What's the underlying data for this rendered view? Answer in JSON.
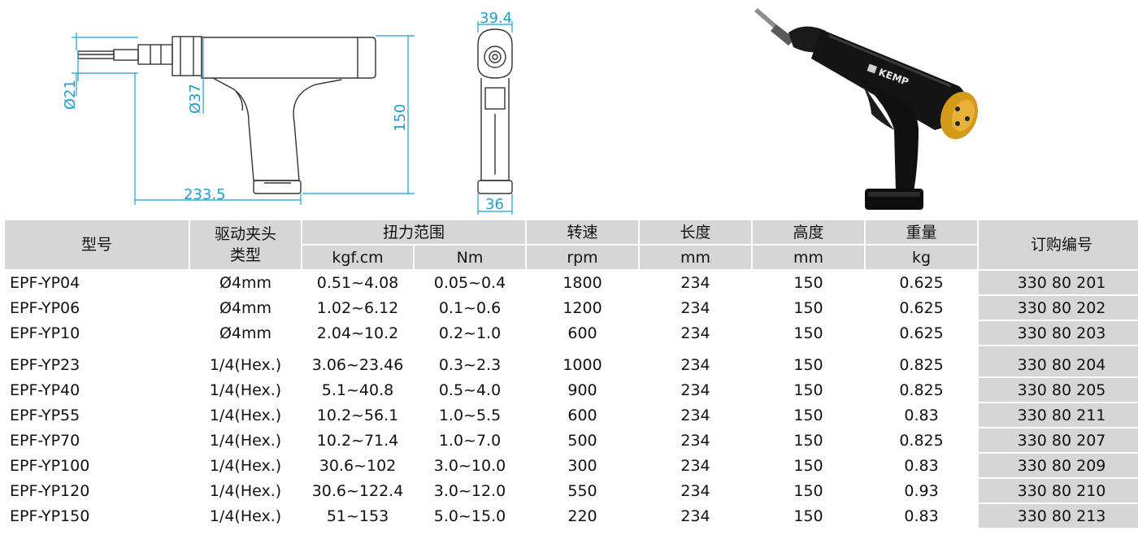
{
  "colors": {
    "dimension": "#1e9fd2",
    "header_bg": "#d6d6d6",
    "order_bg": "#d6d6d6",
    "tool_body": "#141414",
    "tool_cap": "#d39a1a"
  },
  "drawing_labels": {
    "side_view": {
      "diameter_small": "Ø21",
      "diameter_large": "Ø37",
      "height": "150",
      "length": "233.5"
    },
    "front_view": {
      "top_width": "39.4",
      "bottom_width": "36"
    },
    "photo": {
      "brand": "KEMP"
    }
  },
  "table": {
    "headers": {
      "model": "型号",
      "chuck": "驱动夹头\n类型",
      "torque": "扭力范围",
      "speed": "转速",
      "length": "长度",
      "height": "高度",
      "weight": "重量",
      "order": "订购编号"
    },
    "units": {
      "torque_kgf": "kgf.cm",
      "torque_nm": "Nm",
      "speed": "rpm",
      "length": "mm",
      "height": "mm",
      "weight": "kg"
    },
    "rows": [
      {
        "model": "EPF-YP04",
        "chuck": "Ø4mm",
        "kgf": "0.51~4.08",
        "nm": "0.05~0.4",
        "rpm": "1800",
        "length": "234",
        "height": "150",
        "weight": "0.625",
        "order": "330 80 201"
      },
      {
        "model": "EPF-YP06",
        "chuck": "Ø4mm",
        "kgf": "1.02~6.12",
        "nm": "0.1~0.6",
        "rpm": "1200",
        "length": "234",
        "height": "150",
        "weight": "0.625",
        "order": "330 80 202"
      },
      {
        "model": "EPF-YP10",
        "chuck": "Ø4mm",
        "kgf": "2.04~10.2",
        "nm": "0.2~1.0",
        "rpm": "600",
        "length": "234",
        "height": "150",
        "weight": "0.625",
        "order": "330 80 203"
      },
      {
        "model": "EPF-YP23",
        "chuck": "1/4(Hex.)",
        "kgf": "3.06~23.46",
        "nm": "0.3~2.3",
        "rpm": "1000",
        "length": "234",
        "height": "150",
        "weight": "0.825",
        "order": "330 80 204"
      },
      {
        "model": "EPF-YP40",
        "chuck": "1/4(Hex.)",
        "kgf": "5.1~40.8",
        "nm": "0.5~4.0",
        "rpm": "900",
        "length": "234",
        "height": "150",
        "weight": "0.825",
        "order": "330 80 205"
      },
      {
        "model": "EPF-YP55",
        "chuck": "1/4(Hex.)",
        "kgf": "10.2~56.1",
        "nm": "1.0~5.5",
        "rpm": "600",
        "length": "234",
        "height": "150",
        "weight": "0.83",
        "order": "330 80 211"
      },
      {
        "model": "EPF-YP70",
        "chuck": "1/4(Hex.)",
        "kgf": "10.2~71.4",
        "nm": "1.0~7.0",
        "rpm": "500",
        "length": "234",
        "height": "150",
        "weight": "0.825",
        "order": "330 80 207"
      },
      {
        "model": "EPF-YP100",
        "chuck": "1/4(Hex.)",
        "kgf": "30.6~102",
        "nm": "3.0~10.0",
        "rpm": "300",
        "length": "234",
        "height": "150",
        "weight": "0.83",
        "order": "330 80 209"
      },
      {
        "model": "EPF-YP120",
        "chuck": "1/4(Hex.)",
        "kgf": "30.6~122.4",
        "nm": "3.0~12.0",
        "rpm": "550",
        "length": "234",
        "height": "150",
        "weight": "0.93",
        "order": "330 80 210"
      },
      {
        "model": "EPF-YP150",
        "chuck": "1/4(Hex.)",
        "kgf": "51~153",
        "nm": "5.0~15.0",
        "rpm": "220",
        "length": "234",
        "height": "150",
        "weight": "0.83",
        "order": "330 80 213"
      }
    ]
  }
}
